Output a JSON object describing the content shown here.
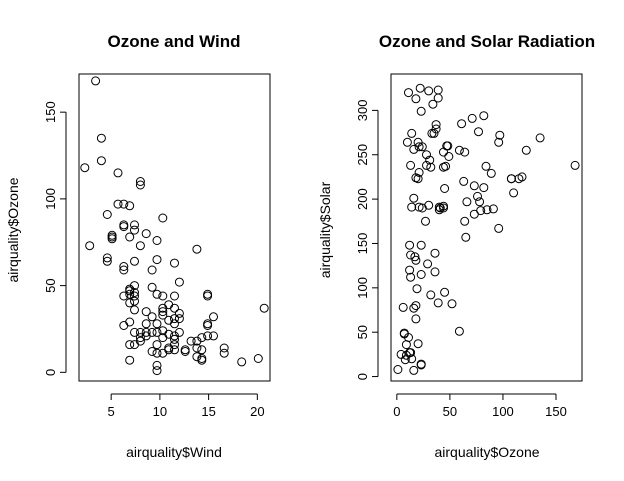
{
  "chart_data": [
    {
      "type": "scatter",
      "title": "Ozone and Wind",
      "xlabel": "airquality$Wind",
      "ylabel": "airquality$Ozone",
      "xlim": [
        1.7,
        21.3
      ],
      "ylim": [
        -5,
        172
      ],
      "xticks": [
        5,
        10,
        15,
        20
      ],
      "yticks": [
        0,
        50,
        100,
        150
      ],
      "grid": false,
      "points": [
        [
          2.3,
          118
        ],
        [
          2.8,
          73
        ],
        [
          3.4,
          168
        ],
        [
          4.0,
          135
        ],
        [
          4.0,
          122
        ],
        [
          4.6,
          91
        ],
        [
          4.6,
          66
        ],
        [
          4.6,
          64
        ],
        [
          5.1,
          78
        ],
        [
          5.1,
          79
        ],
        [
          5.1,
          77
        ],
        [
          5.7,
          115
        ],
        [
          5.7,
          97
        ],
        [
          6.3,
          97
        ],
        [
          6.3,
          85
        ],
        [
          6.3,
          84
        ],
        [
          6.3,
          61
        ],
        [
          6.3,
          59
        ],
        [
          6.3,
          44
        ],
        [
          6.3,
          27
        ],
        [
          6.9,
          96
        ],
        [
          6.9,
          78
        ],
        [
          6.9,
          47
        ],
        [
          6.9,
          48
        ],
        [
          6.9,
          45
        ],
        [
          6.9,
          40
        ],
        [
          6.9,
          29
        ],
        [
          6.9,
          16
        ],
        [
          6.9,
          7
        ],
        [
          7.4,
          85
        ],
        [
          7.4,
          82
        ],
        [
          7.4,
          64
        ],
        [
          7.4,
          50
        ],
        [
          7.4,
          46
        ],
        [
          7.4,
          44
        ],
        [
          7.4,
          41
        ],
        [
          7.4,
          36
        ],
        [
          7.4,
          23
        ],
        [
          7.4,
          16
        ],
        [
          8.0,
          110
        ],
        [
          8.0,
          108
        ],
        [
          8.0,
          73
        ],
        [
          8.0,
          23
        ],
        [
          8.0,
          20
        ],
        [
          8.0,
          18
        ],
        [
          8.6,
          80
        ],
        [
          8.6,
          35
        ],
        [
          8.6,
          28
        ],
        [
          8.6,
          23
        ],
        [
          8.6,
          21
        ],
        [
          9.2,
          59
        ],
        [
          9.2,
          49
        ],
        [
          9.2,
          32
        ],
        [
          9.2,
          23
        ],
        [
          9.2,
          12
        ],
        [
          9.7,
          76
        ],
        [
          9.7,
          65
        ],
        [
          9.7,
          45
        ],
        [
          9.7,
          28
        ],
        [
          9.7,
          23
        ],
        [
          9.7,
          16
        ],
        [
          9.7,
          11
        ],
        [
          9.7,
          4
        ],
        [
          9.7,
          1
        ],
        [
          10.3,
          89
        ],
        [
          10.3,
          44
        ],
        [
          10.3,
          37
        ],
        [
          10.3,
          35
        ],
        [
          10.3,
          33
        ],
        [
          10.3,
          24
        ],
        [
          10.3,
          20
        ],
        [
          10.3,
          11
        ],
        [
          10.9,
          39
        ],
        [
          10.9,
          30
        ],
        [
          10.9,
          22
        ],
        [
          10.9,
          14
        ],
        [
          10.9,
          13
        ],
        [
          11.5,
          63
        ],
        [
          11.5,
          44
        ],
        [
          11.5,
          37
        ],
        [
          11.5,
          31
        ],
        [
          11.5,
          28
        ],
        [
          11.5,
          21
        ],
        [
          11.5,
          19
        ],
        [
          11.5,
          16
        ],
        [
          11.5,
          13
        ],
        [
          12.0,
          52
        ],
        [
          12.0,
          34
        ],
        [
          12.0,
          31
        ],
        [
          12.0,
          23
        ],
        [
          12.6,
          13
        ],
        [
          12.6,
          12
        ],
        [
          13.2,
          18
        ],
        [
          13.8,
          71
        ],
        [
          13.8,
          18
        ],
        [
          13.8,
          14
        ],
        [
          13.8,
          9
        ],
        [
          14.3,
          20
        ],
        [
          14.3,
          13
        ],
        [
          14.3,
          7
        ],
        [
          14.3,
          8
        ],
        [
          14.9,
          45
        ],
        [
          14.9,
          44
        ],
        [
          14.9,
          27
        ],
        [
          14.9,
          28
        ],
        [
          14.9,
          21
        ],
        [
          15.5,
          32
        ],
        [
          15.5,
          21
        ],
        [
          16.6,
          14
        ],
        [
          16.6,
          11
        ],
        [
          18.4,
          6
        ],
        [
          20.1,
          8
        ],
        [
          20.7,
          37
        ]
      ]
    },
    {
      "type": "scatter",
      "title": "Ozone and Solar Radiation",
      "xlabel": "airquality$Ozone",
      "ylabel": "airquality$Solar",
      "xlim": [
        -5.5,
        174.5
      ],
      "ylim": [
        -5,
        341
      ],
      "xticks": [
        0,
        50,
        100,
        150
      ],
      "yticks": [
        0,
        50,
        100,
        150,
        200,
        250,
        300
      ],
      "grid": false,
      "points": [
        [
          1,
          8
        ],
        [
          4,
          25
        ],
        [
          6,
          78
        ],
        [
          7,
          48
        ],
        [
          7,
          49
        ],
        [
          8,
          19
        ],
        [
          9,
          24
        ],
        [
          9,
          36
        ],
        [
          10,
          264
        ],
        [
          11,
          44
        ],
        [
          11,
          320
        ],
        [
          12,
          148
        ],
        [
          12,
          120
        ],
        [
          12,
          27
        ],
        [
          13,
          112
        ],
        [
          13,
          137
        ],
        [
          13,
          238
        ],
        [
          13,
          27
        ],
        [
          14,
          274
        ],
        [
          14,
          191
        ],
        [
          14,
          20
        ],
        [
          16,
          7
        ],
        [
          16,
          256
        ],
        [
          16,
          201
        ],
        [
          16,
          77
        ],
        [
          17,
          135
        ],
        [
          18,
          131
        ],
        [
          18,
          224
        ],
        [
          18,
          65
        ],
        [
          18,
          80
        ],
        [
          18,
          313
        ],
        [
          19,
          99
        ],
        [
          20,
          37
        ],
        [
          20,
          264
        ],
        [
          20,
          223
        ],
        [
          21,
          191
        ],
        [
          21,
          259
        ],
        [
          21,
          230
        ],
        [
          22,
          325
        ],
        [
          23,
          14
        ],
        [
          23,
          148
        ],
        [
          23,
          299
        ],
        [
          23,
          115
        ],
        [
          23,
          13
        ],
        [
          24,
          259
        ],
        [
          24,
          190
        ],
        [
          27,
          175
        ],
        [
          28,
          250
        ],
        [
          28,
          238
        ],
        [
          29,
          127
        ],
        [
          30,
          193
        ],
        [
          30,
          322
        ],
        [
          31,
          244
        ],
        [
          32,
          92
        ],
        [
          32,
          236
        ],
        [
          33,
          274
        ],
        [
          34,
          307
        ],
        [
          35,
          274
        ],
        [
          36,
          139
        ],
        [
          36,
          118
        ],
        [
          37,
          284
        ],
        [
          37,
          279
        ],
        [
          39,
          323
        ],
        [
          39,
          83
        ],
        [
          39,
          314
        ],
        [
          40,
          191
        ],
        [
          40,
          188
        ],
        [
          41,
          190
        ],
        [
          44,
          236
        ],
        [
          44,
          190
        ],
        [
          44,
          192
        ],
        [
          44,
          253
        ],
        [
          45,
          212
        ],
        [
          45,
          95
        ],
        [
          46,
          237
        ],
        [
          47,
          260
        ],
        [
          48,
          260
        ],
        [
          49,
          248
        ],
        [
          52,
          82
        ],
        [
          59,
          51
        ],
        [
          59,
          255
        ],
        [
          61,
          285
        ],
        [
          63,
          220
        ],
        [
          64,
          175
        ],
        [
          64,
          253
        ],
        [
          65,
          157
        ],
        [
          66,
          197
        ],
        [
          71,
          291
        ],
        [
          73,
          215
        ],
        [
          73,
          183
        ],
        [
          76,
          203
        ],
        [
          77,
          276
        ],
        [
          78,
          197
        ],
        [
          79,
          187
        ],
        [
          82,
          213
        ],
        [
          82,
          294
        ],
        [
          84,
          237
        ],
        [
          85,
          188
        ],
        [
          89,
          229
        ],
        [
          91,
          189
        ],
        [
          96,
          167
        ],
        [
          96,
          264
        ],
        [
          97,
          272
        ],
        [
          108,
          223
        ],
        [
          108,
          223
        ],
        [
          110,
          207
        ],
        [
          115,
          223
        ],
        [
          118,
          225
        ],
        [
          122,
          255
        ],
        [
          135,
          269
        ],
        [
          168,
          238
        ]
      ]
    }
  ]
}
